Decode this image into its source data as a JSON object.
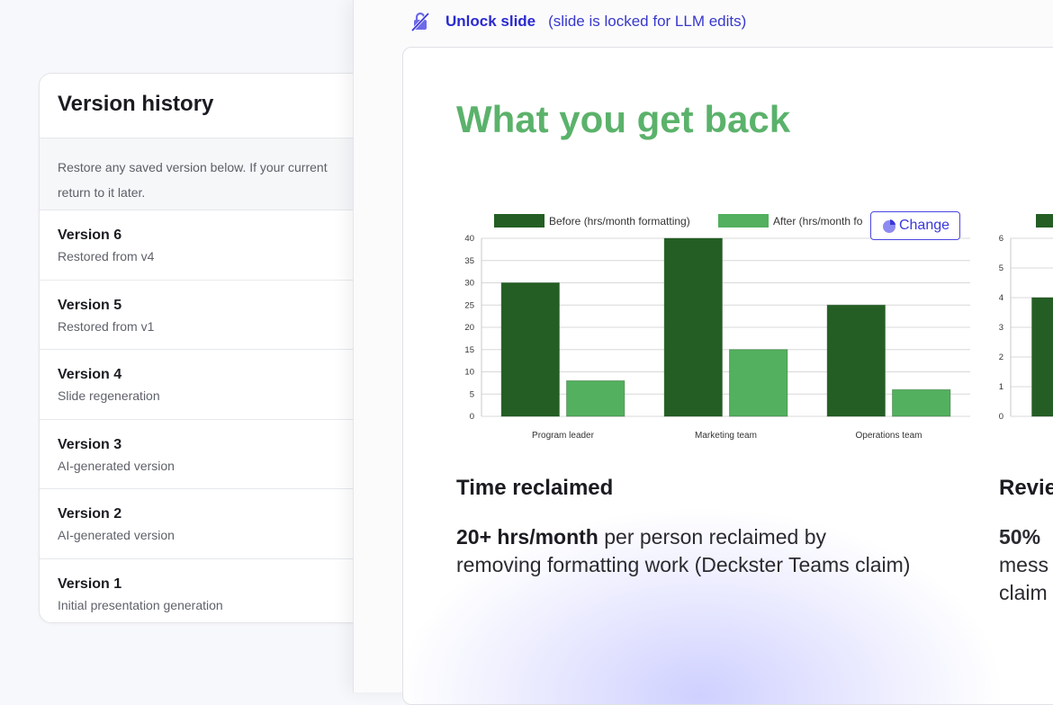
{
  "version_history": {
    "title": "Version history",
    "description_line1": "Restore any saved version below. If your current",
    "description_line2": "return to it later.",
    "versions": [
      {
        "name": "Version 6",
        "detail": "Restored from v4"
      },
      {
        "name": "Version 5",
        "detail": "Restored from v1"
      },
      {
        "name": "Version 4",
        "detail": "Slide regeneration"
      },
      {
        "name": "Version 3",
        "detail": "AI-generated version"
      },
      {
        "name": "Version 2",
        "detail": "AI-generated version"
      },
      {
        "name": "Version 1",
        "detail": "Initial presentation generation"
      }
    ]
  },
  "editor": {
    "unlock_label": "Unlock slide",
    "lock_note": "(slide is locked for LLM edits)",
    "lock_icon": "lock-off-icon",
    "accent_color": "#2a2ad1"
  },
  "slide": {
    "title": "What you get back",
    "title_color": "#5bb26b",
    "change_label": "Change",
    "change_icon": "pie-chart-icon",
    "time_heading": "Time reclaimed",
    "time_body_bold": "20+ hrs/month",
    "time_body_line1_rest": " per person reclaimed by",
    "time_body_line2": "removing formatting work (Deckster Teams claim)",
    "review_heading": "Revie",
    "review_bold": "50%",
    "review_line2": "mess",
    "review_line3": "claim"
  },
  "chart_data": [
    {
      "type": "bar",
      "categories": [
        "Program leader",
        "Marketing team",
        "Operations team"
      ],
      "series": [
        {
          "name": "Before (hrs/month formatting)",
          "values": [
            30,
            40,
            25
          ],
          "color": "#245e24"
        },
        {
          "name": "After (hrs/month fo",
          "values": [
            8,
            15,
            6
          ],
          "color": "#52b05e"
        }
      ],
      "ylim": [
        0,
        40
      ],
      "yticks": [
        0,
        5,
        10,
        15,
        20,
        25,
        30,
        35,
        40
      ],
      "grid": true,
      "legend": "top"
    },
    {
      "type": "bar",
      "categories": [
        ""
      ],
      "series": [
        {
          "name": "",
          "values": [
            4
          ],
          "color": "#245e24"
        }
      ],
      "ylim": [
        0,
        6
      ],
      "yticks": [
        0,
        1,
        2,
        3,
        4,
        5,
        6
      ],
      "grid": true,
      "legend": "top"
    }
  ]
}
